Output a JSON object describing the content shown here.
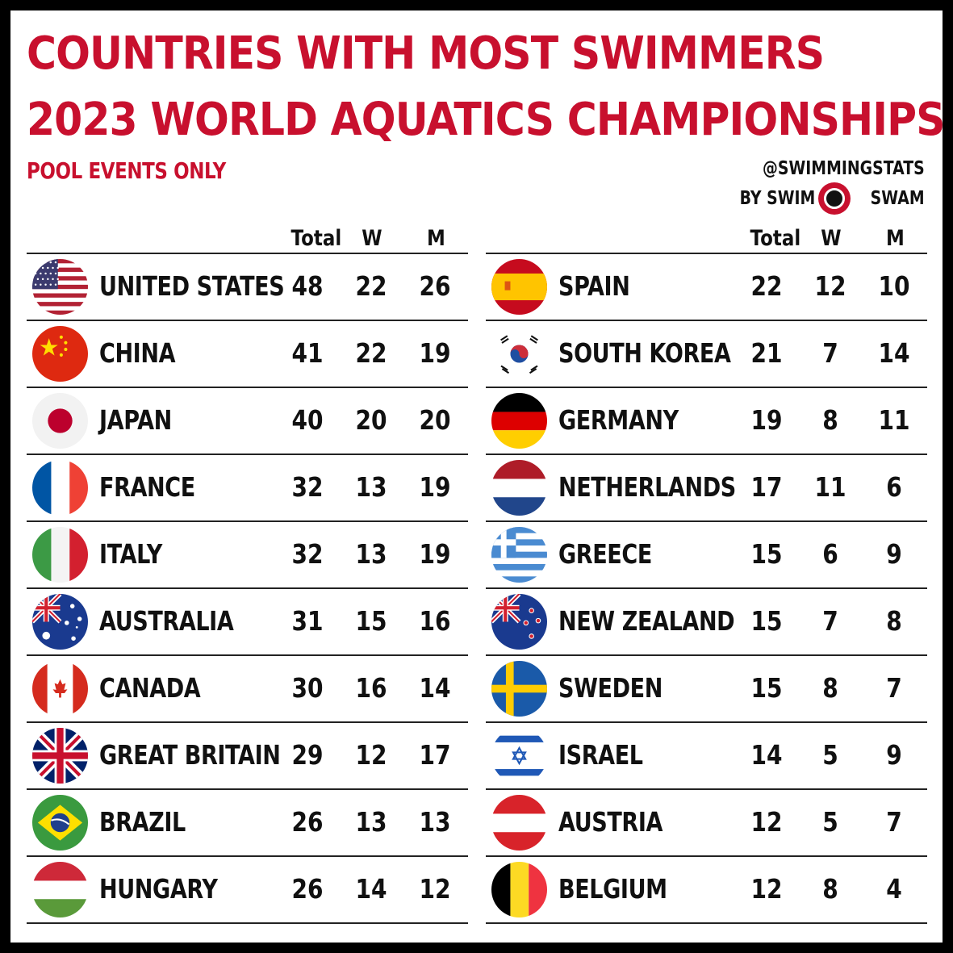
{
  "title_line1": "COUNTRIES WITH MOST SWIMMERS",
  "title_line2": "2023 WORLD AQUATICS CHAMPIONSHIPS",
  "subtitle": "POOL EVENTS ONLY",
  "credit": {
    "handle": "@SWIMMINGSTATS",
    "by": "BY SWIM",
    "brand": "SWAM"
  },
  "headers": {
    "total": "Total",
    "w": "W",
    "m": "M"
  },
  "colors": {
    "title": "#c8102e",
    "text": "#111111",
    "frame": "#000000"
  },
  "chart_data": {
    "type": "table",
    "title": "COUNTRIES WITH MOST SWIMMERS 2023 WORLD AQUATICS CHAMPIONSHIPS",
    "subtitle": "POOL EVENTS ONLY",
    "columns": [
      "Total",
      "W",
      "M"
    ],
    "rows": [
      {
        "country": "UNITED STATES",
        "flag": "us-flag-icon",
        "total": "48",
        "w": "22",
        "m": "26"
      },
      {
        "country": "CHINA",
        "flag": "china-flag-icon",
        "total": "41",
        "w": "22",
        "m": "19"
      },
      {
        "country": "JAPAN",
        "flag": "japan-flag-icon",
        "total": "40",
        "w": "20",
        "m": "20"
      },
      {
        "country": "FRANCE",
        "flag": "france-flag-icon",
        "total": "32",
        "w": "13",
        "m": "19"
      },
      {
        "country": "ITALY",
        "flag": "italy-flag-icon",
        "total": "32",
        "w": "13",
        "m": "19"
      },
      {
        "country": "AUSTRALIA",
        "flag": "australia-flag-icon",
        "total": "31",
        "w": "15",
        "m": "16"
      },
      {
        "country": "CANADA",
        "flag": "canada-flag-icon",
        "total": "30",
        "w": "16",
        "m": "14"
      },
      {
        "country": "GREAT BRITAIN",
        "flag": "uk-flag-icon",
        "total": "29",
        "w": "12",
        "m": "17"
      },
      {
        "country": "BRAZIL",
        "flag": "brazil-flag-icon",
        "total": "26",
        "w": "13",
        "m": "13"
      },
      {
        "country": "HUNGARY",
        "flag": "hungary-flag-icon",
        "total": "26",
        "w": "14",
        "m": "12"
      },
      {
        "country": "SPAIN",
        "flag": "spain-flag-icon",
        "total": "22",
        "w": "12",
        "m": "10"
      },
      {
        "country": "SOUTH KOREA",
        "flag": "south-korea-flag-icon",
        "total": "21",
        "w": "7",
        "m": "14"
      },
      {
        "country": "GERMANY",
        "flag": "germany-flag-icon",
        "total": "19",
        "w": "8",
        "m": "11"
      },
      {
        "country": "NETHERLANDS",
        "flag": "netherlands-flag-icon",
        "total": "17",
        "w": "11",
        "m": "6"
      },
      {
        "country": "GREECE",
        "flag": "greece-flag-icon",
        "total": "15",
        "w": "6",
        "m": "9"
      },
      {
        "country": "NEW ZEALAND",
        "flag": "new-zealand-flag-icon",
        "total": "15",
        "w": "7",
        "m": "8"
      },
      {
        "country": "SWEDEN",
        "flag": "sweden-flag-icon",
        "total": "15",
        "w": "8",
        "m": "7"
      },
      {
        "country": "ISRAEL",
        "flag": "israel-flag-icon",
        "total": "14",
        "w": "5",
        "m": "9"
      },
      {
        "country": "AUSTRIA",
        "flag": "austria-flag-icon",
        "total": "12",
        "w": "5",
        "m": "7"
      },
      {
        "country": "BELGIUM",
        "flag": "belgium-flag-icon",
        "total": "12",
        "w": "8",
        "m": "4"
      }
    ]
  }
}
